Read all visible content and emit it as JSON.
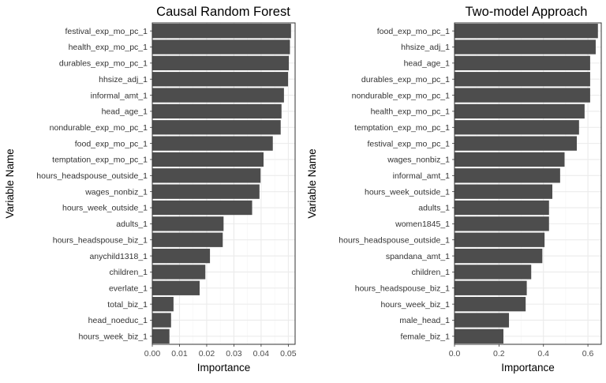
{
  "chart_data": [
    {
      "type": "bar",
      "orientation": "horizontal",
      "title": "Causal Random Forest",
      "xlabel": "Importance",
      "ylabel": "Variable Name",
      "xlim": [
        0,
        0.0525
      ],
      "xticks": [
        0.0,
        0.01,
        0.02,
        0.03,
        0.04,
        0.05
      ],
      "xtick_labels": [
        "0.00",
        "0.01",
        "0.02",
        "0.03",
        "0.04",
        "0.05"
      ],
      "grid": true,
      "categories": [
        "festival_exp_mo_pc_1",
        "health_exp_mo_pc_1",
        "durables_exp_mo_pc_1",
        "hhsize_adj_1",
        "informal_amt_1",
        "head_age_1",
        "nondurable_exp_mo_pc_1",
        "food_exp_mo_pc_1",
        "temptation_exp_mo_pc_1",
        "hours_headspouse_outside_1",
        "wages_nonbiz_1",
        "hours_week_outside_1",
        "adults_1",
        "hours_headspouse_biz_1",
        "anychild1318_1",
        "children_1",
        "everlate_1",
        "total_biz_1",
        "head_noeduc_1",
        "hours_week_biz_1"
      ],
      "values": [
        0.051,
        0.0506,
        0.0502,
        0.0499,
        0.0484,
        0.0475,
        0.0472,
        0.0443,
        0.0409,
        0.0398,
        0.0394,
        0.0367,
        0.0262,
        0.0259,
        0.0212,
        0.0195,
        0.0174,
        0.0078,
        0.0069,
        0.0063
      ]
    },
    {
      "type": "bar",
      "orientation": "horizontal",
      "title": "Two-model Approach",
      "xlabel": "Importance",
      "ylabel": "Variable Name",
      "xlim": [
        0,
        0.66
      ],
      "xticks": [
        0.0,
        0.2,
        0.4,
        0.6
      ],
      "xtick_labels": [
        "0.0",
        "0.2",
        "0.4",
        "0.6"
      ],
      "grid": true,
      "categories": [
        "food_exp_mo_pc_1",
        "hhsize_adj_1",
        "head_age_1",
        "durables_exp_mo_pc_1",
        "nondurable_exp_mo_pc_1",
        "health_exp_mo_pc_1",
        "temptation_exp_mo_pc_1",
        "festival_exp_mo_pc_1",
        "wages_nonbiz_1",
        "informal_amt_1",
        "hours_week_outside_1",
        "adults_1",
        "women1845_1",
        "hours_headspouse_outside_1",
        "spandana_amt_1",
        "children_1",
        "hours_headspouse_biz_1",
        "hours_week_biz_1",
        "male_head_1",
        "female_biz_1"
      ],
      "values": [
        0.645,
        0.635,
        0.61,
        0.61,
        0.61,
        0.585,
        0.56,
        0.55,
        0.495,
        0.475,
        0.44,
        0.425,
        0.425,
        0.405,
        0.395,
        0.345,
        0.325,
        0.32,
        0.245,
        0.22
      ]
    }
  ],
  "colors": {
    "bar": "#4d4d4d",
    "grid_major": "#ebebeb",
    "grid_minor": "#f5f5f5",
    "panel_border": "#333333",
    "background": "#ffffff"
  }
}
